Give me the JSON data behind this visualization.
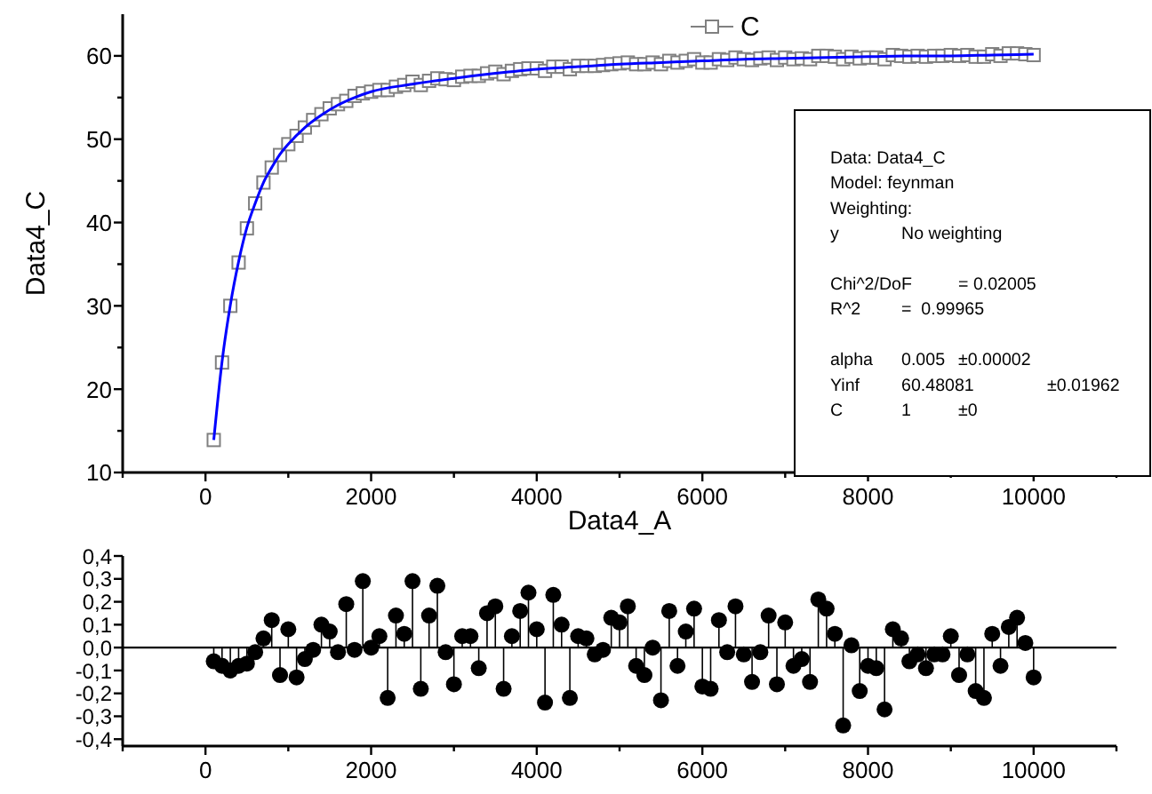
{
  "chart_data": [
    {
      "type": "scatter",
      "xlabel": "Data4_A",
      "ylabel": "Data4_C",
      "legend": "top",
      "marker": "square",
      "x": [
        100,
        200,
        300,
        400,
        500,
        600,
        700,
        800,
        900,
        1000,
        1100,
        1200,
        1300,
        1400,
        1500,
        1600,
        1700,
        1800,
        1900,
        2000,
        2100,
        2200,
        2300,
        2400,
        2500,
        2600,
        2700,
        2800,
        2900,
        3000,
        3100,
        3200,
        3300,
        3400,
        3500,
        3600,
        3700,
        3800,
        3900,
        4000,
        4100,
        4200,
        4300,
        4400,
        4500,
        4600,
        4700,
        4800,
        4900,
        5000,
        5100,
        5200,
        5300,
        5400,
        5500,
        5600,
        5700,
        5800,
        5900,
        6000,
        6100,
        6200,
        6300,
        6400,
        6500,
        6600,
        6700,
        6800,
        6900,
        7000,
        7100,
        7200,
        7300,
        7400,
        7500,
        7600,
        7700,
        7800,
        7900,
        8000,
        8100,
        8200,
        8300,
        8400,
        8500,
        8600,
        8700,
        8800,
        8900,
        9000,
        9100,
        9200,
        9300,
        9400,
        9500,
        9600,
        9700,
        9800,
        9900,
        10000
      ],
      "xlim": [
        -1000,
        11000
      ],
      "xticks": [
        {
          "value": -1000,
          "label": null
        },
        0,
        {
          "value": 1000,
          "label": null
        },
        2000,
        {
          "value": 3000,
          "label": null
        },
        4000,
        {
          "value": 5000,
          "label": null
        },
        6000,
        {
          "value": 7000,
          "label": null
        },
        8000,
        {
          "value": 9000,
          "label": null
        },
        10000,
        {
          "value": 11000,
          "label": null
        }
      ],
      "ylim": [
        10,
        65
      ],
      "yticks": [
        10,
        {
          "value": 15,
          "label": null
        },
        20,
        {
          "value": 25,
          "label": null
        },
        30,
        {
          "value": 35,
          "label": null
        },
        40,
        {
          "value": 45,
          "label": null
        },
        50,
        {
          "value": 55,
          "label": null
        },
        60
      ],
      "series": [
        {
          "name": "C",
          "color": "#808080",
          "values": [
            13.9,
            23.2,
            30.0,
            35.2,
            39.3,
            42.3,
            44.8,
            46.6,
            48.1,
            49.4,
            50.4,
            51.4,
            52.3,
            53.0,
            53.7,
            54.2,
            54.6,
            55.2,
            55.5,
            55.7,
            55.9,
            55.9,
            56.3,
            56.5,
            56.9,
            56.5,
            57.0,
            57.3,
            57.2,
            57.1,
            57.5,
            57.6,
            57.6,
            57.9,
            58.1,
            57.8,
            58.2,
            58.4,
            58.5,
            58.5,
            58.2,
            58.7,
            58.7,
            58.4,
            58.8,
            58.8,
            58.8,
            58.9,
            59.0,
            59.1,
            59.2,
            59.0,
            59.0,
            59.2,
            59.0,
            59.4,
            59.2,
            59.4,
            59.6,
            59.2,
            59.2,
            59.6,
            59.5,
            59.8,
            59.6,
            59.5,
            59.7,
            59.8,
            59.5,
            59.8,
            59.6,
            59.7,
            59.6,
            60.0,
            60.0,
            59.9,
            59.6,
            59.9,
            59.7,
            59.8,
            59.8,
            59.6,
            60.1,
            60.0,
            59.9,
            60.0,
            59.9,
            60.0,
            60.0,
            60.1,
            60.0,
            60.1,
            59.9,
            59.9,
            60.2,
            60.0,
            60.3,
            60.3,
            60.2,
            60.1
          ]
        },
        {
          "type": "line",
          "marker": "none",
          "color": "#0000ff",
          "x": [
            100,
            200,
            300,
            400,
            500,
            600,
            700,
            800,
            900,
            1000,
            1200,
            1400,
            1600,
            1800,
            2000,
            2500,
            3000,
            3500,
            4000,
            4500,
            5000,
            5500,
            6000,
            6500,
            7000,
            7500,
            8000,
            8500,
            9000,
            9500,
            10000
          ],
          "values": [
            13.9,
            23.3,
            30.1,
            35.3,
            39.4,
            42.3,
            44.8,
            46.6,
            48.2,
            49.4,
            51.4,
            52.9,
            54.1,
            55.0,
            55.7,
            56.6,
            57.3,
            57.9,
            58.4,
            58.7,
            59.0,
            59.2,
            59.4,
            59.6,
            59.7,
            59.8,
            59.9,
            60.0,
            60.0,
            60.1,
            60.2
          ]
        }
      ],
      "annotations": [
        "Data: Data4_C\nModel: feynman\nWeighting:\ny\tNo weighting\n\nChi^2/DoF\t\t= 0.02005\nR^2\t=  0.99965\n\nalpha\t0.005\t±0.00002\nYinf\t60.48081\t\t±0.01962\nC\t1\t±0"
      ]
    },
    {
      "type": "lollipop",
      "marker": "circle",
      "x": [
        100,
        200,
        300,
        400,
        500,
        600,
        700,
        800,
        900,
        1000,
        1100,
        1200,
        1300,
        1400,
        1500,
        1600,
        1700,
        1800,
        1900,
        2000,
        2100,
        2200,
        2300,
        2400,
        2500,
        2600,
        2700,
        2800,
        2900,
        3000,
        3100,
        3200,
        3300,
        3400,
        3500,
        3600,
        3700,
        3800,
        3900,
        4000,
        4100,
        4200,
        4300,
        4400,
        4500,
        4600,
        4700,
        4800,
        4900,
        5000,
        5100,
        5200,
        5300,
        5400,
        5500,
        5600,
        5700,
        5800,
        5900,
        6000,
        6100,
        6200,
        6300,
        6400,
        6500,
        6600,
        6700,
        6800,
        6900,
        7000,
        7100,
        7200,
        7300,
        7400,
        7500,
        7600,
        7700,
        7800,
        7900,
        8000,
        8100,
        8200,
        8300,
        8400,
        8500,
        8600,
        8700,
        8800,
        8900,
        9000,
        9100,
        9200,
        9300,
        9400,
        9500,
        9600,
        9700,
        9800,
        9900,
        10000
      ],
      "xlim": [
        -1000,
        11000
      ],
      "xticks": [
        {
          "value": -1000,
          "label": null
        },
        0,
        {
          "value": 1000,
          "label": null
        },
        2000,
        {
          "value": 3000,
          "label": null
        },
        4000,
        {
          "value": 5000,
          "label": null
        },
        6000,
        {
          "value": 7000,
          "label": null
        },
        8000,
        {
          "value": 9000,
          "label": null
        },
        10000,
        {
          "value": 11000,
          "label": null
        }
      ],
      "ylim": [
        -0.43,
        0.4
      ],
      "yticks": [
        {
          "value": 0.4,
          "label": "0,4"
        },
        {
          "value": 0.3,
          "label": "0,3"
        },
        {
          "value": 0.2,
          "label": "0,2"
        },
        {
          "value": 0.1,
          "label": "0,1"
        },
        {
          "value": 0,
          "label": "0,0"
        },
        {
          "value": -0.1,
          "label": "-0,1"
        },
        {
          "value": -0.2,
          "label": "-0,2"
        },
        {
          "value": -0.3,
          "label": "-0,3"
        },
        {
          "value": -0.4,
          "label": "-0,4"
        }
      ],
      "ref_lines": [
        {
          "axis": "y",
          "value": 0
        }
      ],
      "series": [
        {
          "color": "#000000",
          "values": [
            -0.06,
            -0.08,
            -0.1,
            -0.08,
            -0.07,
            -0.02,
            0.04,
            0.12,
            -0.12,
            0.08,
            -0.13,
            -0.05,
            -0.01,
            0.1,
            0.07,
            -0.02,
            0.19,
            -0.01,
            0.29,
            0.0,
            0.05,
            -0.22,
            0.14,
            0.06,
            0.29,
            -0.18,
            0.14,
            0.27,
            -0.02,
            -0.16,
            0.05,
            0.05,
            -0.09,
            0.15,
            0.18,
            -0.18,
            0.05,
            0.16,
            0.24,
            0.08,
            -0.24,
            0.23,
            0.1,
            -0.22,
            0.05,
            0.04,
            -0.03,
            -0.01,
            0.13,
            0.11,
            0.18,
            -0.08,
            -0.12,
            0.0,
            -0.23,
            0.16,
            -0.08,
            0.07,
            0.17,
            -0.17,
            -0.18,
            0.12,
            -0.02,
            0.18,
            -0.03,
            -0.15,
            -0.02,
            0.14,
            -0.16,
            0.11,
            -0.08,
            -0.05,
            -0.15,
            0.21,
            0.17,
            0.06,
            -0.34,
            0.01,
            -0.19,
            -0.08,
            -0.09,
            -0.27,
            0.08,
            0.04,
            -0.06,
            -0.03,
            -0.09,
            -0.03,
            -0.03,
            0.05,
            -0.12,
            -0.03,
            -0.19,
            -0.22,
            0.06,
            -0.08,
            0.09,
            0.13,
            0.02,
            -0.13
          ]
        }
      ]
    }
  ]
}
